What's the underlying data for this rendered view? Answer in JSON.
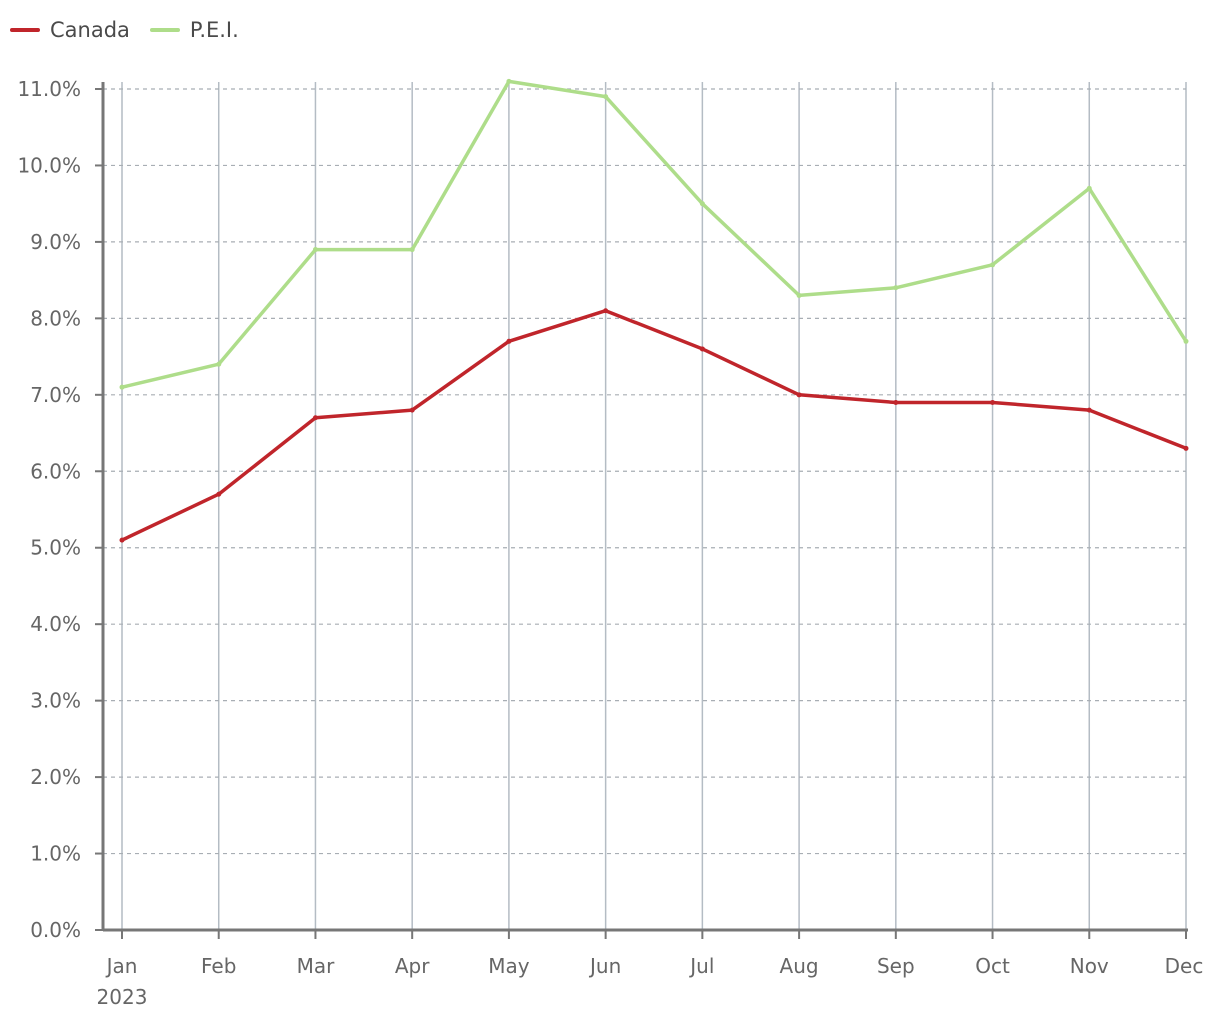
{
  "chart_data": {
    "type": "line",
    "categories": [
      "Jan",
      "Feb",
      "Mar",
      "Apr",
      "May",
      "Jun",
      "Jul",
      "Aug",
      "Sep",
      "Oct",
      "Nov",
      "Dec"
    ],
    "year_label": "2023",
    "series": [
      {
        "name": "Canada",
        "color": "#c0252b",
        "values": [
          5.1,
          5.7,
          6.7,
          6.8,
          7.7,
          8.1,
          7.6,
          7.0,
          6.9,
          6.9,
          6.8,
          6.3
        ]
      },
      {
        "name": "P.E.I.",
        "color": "#aedd8a",
        "values": [
          7.1,
          7.4,
          8.9,
          8.9,
          11.1,
          10.9,
          9.5,
          8.3,
          8.4,
          8.7,
          9.7,
          7.7
        ]
      }
    ],
    "ylim": [
      0,
      11
    ],
    "yticks": [
      "0.0%",
      "1.0%",
      "2.0%",
      "3.0%",
      "4.0%",
      "5.0%",
      "6.0%",
      "7.0%",
      "8.0%",
      "9.0%",
      "10.0%",
      "11.0%"
    ],
    "legend_position": "top-left",
    "grid": true,
    "title": "",
    "xlabel": "",
    "ylabel": ""
  }
}
